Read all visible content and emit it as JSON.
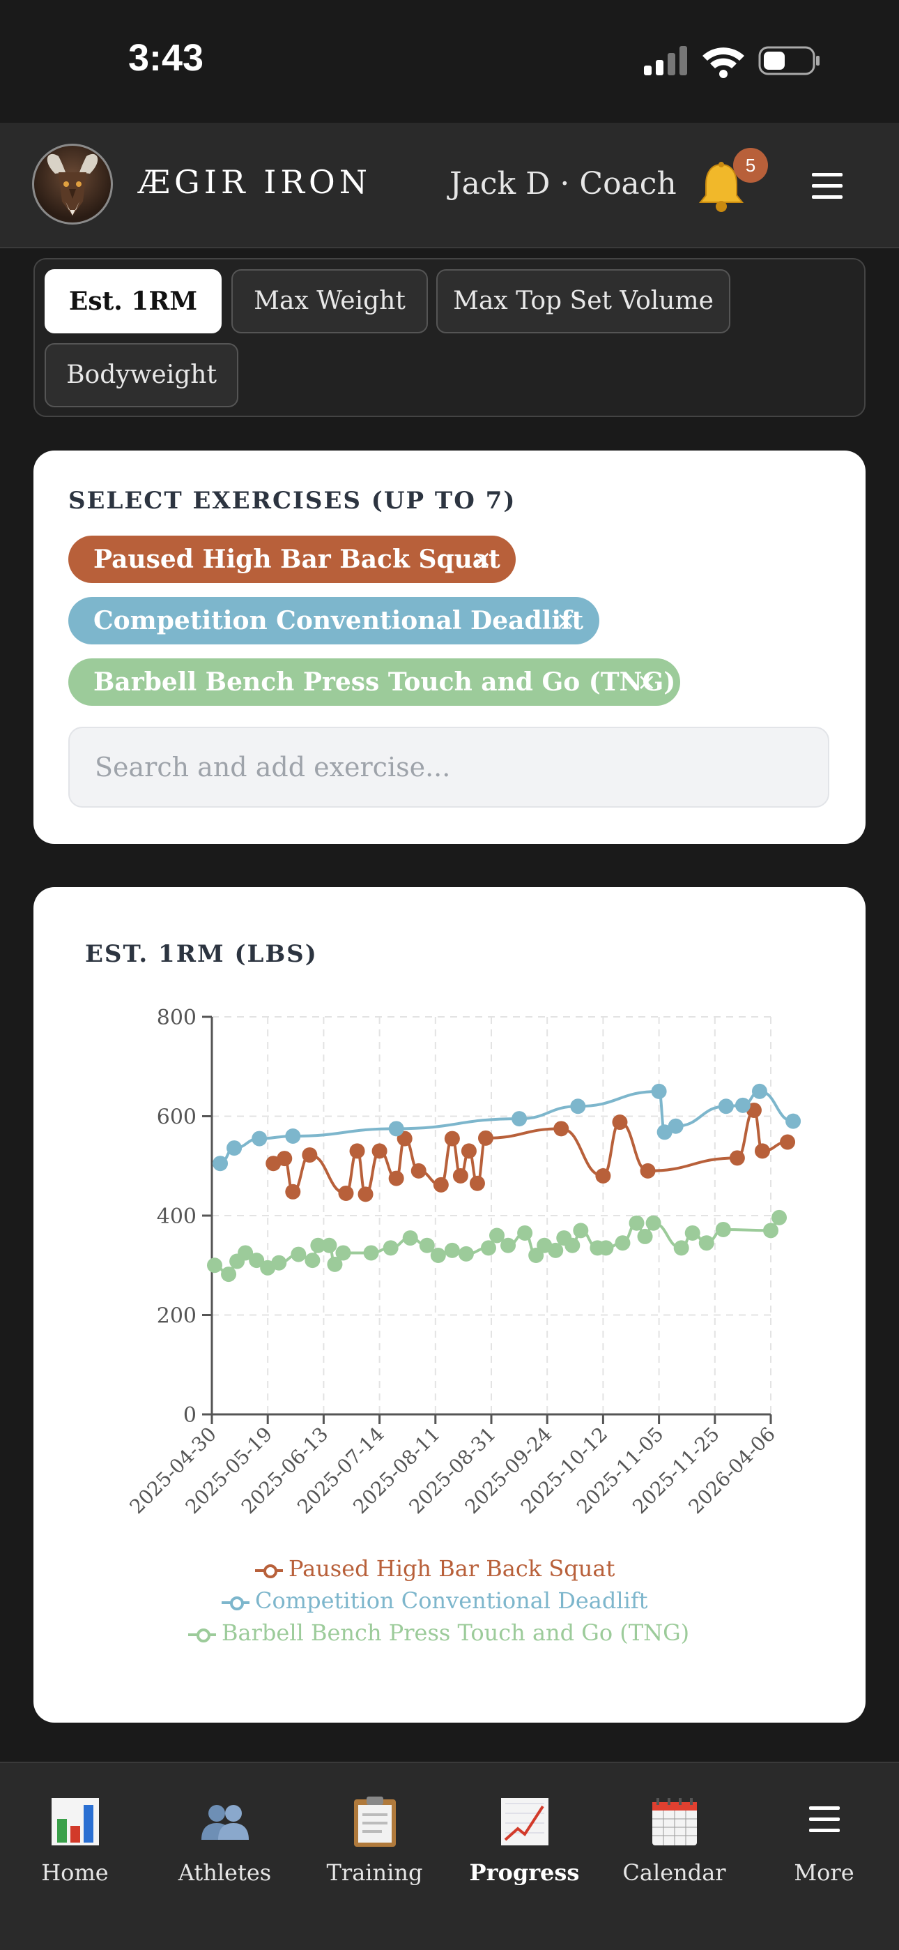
{
  "status_bar": {
    "time": "3:43"
  },
  "header": {
    "brand": "ÆGIR IRON",
    "user": "Jack D · Coach",
    "notification_count": "5"
  },
  "metric_tabs": [
    {
      "label": "Est. 1RM",
      "active": true
    },
    {
      "label": "Max Weight",
      "active": false
    },
    {
      "label": "Max Top Set Volume",
      "active": false
    },
    {
      "label": "Bodyweight",
      "active": false
    }
  ],
  "exercise_select": {
    "title": "SELECT EXERCISES (UP TO 7)",
    "chips": [
      {
        "label": "Paused High Bar Back Squat",
        "color": "#b8603a",
        "remove": "×"
      },
      {
        "label": "Competition Conventional Deadlift",
        "color": "#7db6cc",
        "remove": "×"
      },
      {
        "label": "Barbell Bench Press Touch and Go (TNG)",
        "color": "#9ccb9a",
        "remove": "×"
      }
    ],
    "search_placeholder": "Search and add exercise..."
  },
  "chart_data": {
    "type": "line",
    "title": "EST. 1RM (LBS)",
    "ylim": [
      0,
      800
    ],
    "y_ticks": [
      0,
      200,
      400,
      600,
      800
    ],
    "x_tick_labels": [
      "2025-04-30",
      "2025-05-19",
      "2025-06-13",
      "2025-07-14",
      "2025-08-11",
      "2025-08-31",
      "2025-09-24",
      "2025-10-12",
      "2025-11-05",
      "2025-11-25",
      "2026-04-06"
    ],
    "grid": true,
    "legend_position": "bottom",
    "series": [
      {
        "name": "Paused High Bar Back Squat",
        "color": "#b8603a",
        "points": [
          [
            1.1,
            505
          ],
          [
            1.3,
            515
          ],
          [
            1.45,
            448
          ],
          [
            1.75,
            522
          ],
          [
            2.4,
            445
          ],
          [
            2.6,
            530
          ],
          [
            2.75,
            443
          ],
          [
            3.0,
            530
          ],
          [
            3.3,
            475
          ],
          [
            3.45,
            555
          ],
          [
            3.7,
            490
          ],
          [
            4.1,
            462
          ],
          [
            4.3,
            555
          ],
          [
            4.45,
            480
          ],
          [
            4.6,
            530
          ],
          [
            4.75,
            465
          ],
          [
            4.9,
            556
          ],
          [
            6.25,
            575
          ],
          [
            7.0,
            480
          ],
          [
            7.3,
            588
          ],
          [
            7.8,
            490
          ],
          [
            9.4,
            516
          ],
          [
            9.7,
            612
          ],
          [
            9.85,
            530
          ],
          [
            10.3,
            548
          ]
        ]
      },
      {
        "name": "Competition Conventional Deadlift",
        "color": "#7db6cc",
        "points": [
          [
            0.15,
            505
          ],
          [
            0.4,
            536
          ],
          [
            0.85,
            555
          ],
          [
            1.45,
            560
          ],
          [
            3.3,
            575
          ],
          [
            5.5,
            595
          ],
          [
            6.55,
            620
          ],
          [
            8.0,
            650
          ],
          [
            8.1,
            568
          ],
          [
            8.3,
            580
          ],
          [
            9.2,
            620
          ],
          [
            9.5,
            622
          ],
          [
            9.8,
            650
          ],
          [
            10.4,
            590
          ]
        ]
      },
      {
        "name": "Barbell Bench Press Touch and Go (TNG)",
        "color": "#9ccb9a",
        "points": [
          [
            0.05,
            300
          ],
          [
            0.3,
            282
          ],
          [
            0.45,
            308
          ],
          [
            0.6,
            325
          ],
          [
            0.8,
            310
          ],
          [
            1.0,
            295
          ],
          [
            1.2,
            305
          ],
          [
            1.55,
            322
          ],
          [
            1.8,
            310
          ],
          [
            1.9,
            340
          ],
          [
            2.1,
            340
          ],
          [
            2.2,
            302
          ],
          [
            2.35,
            325
          ],
          [
            2.85,
            325
          ],
          [
            3.2,
            335
          ],
          [
            3.55,
            355
          ],
          [
            3.85,
            340
          ],
          [
            4.05,
            320
          ],
          [
            4.3,
            330
          ],
          [
            4.55,
            323
          ],
          [
            4.95,
            335
          ],
          [
            5.1,
            360
          ],
          [
            5.3,
            340
          ],
          [
            5.6,
            365
          ],
          [
            5.8,
            320
          ],
          [
            5.95,
            340
          ],
          [
            6.15,
            330
          ],
          [
            6.3,
            355
          ],
          [
            6.45,
            340
          ],
          [
            6.6,
            370
          ],
          [
            6.9,
            335
          ],
          [
            7.05,
            335
          ],
          [
            7.35,
            345
          ],
          [
            7.6,
            385
          ],
          [
            7.75,
            358
          ],
          [
            7.9,
            385
          ],
          [
            8.4,
            335
          ],
          [
            8.6,
            365
          ],
          [
            8.85,
            345
          ],
          [
            9.15,
            372
          ],
          [
            10.0,
            370
          ],
          [
            10.15,
            396
          ]
        ]
      }
    ]
  },
  "bottom_nav": [
    {
      "label": "Home",
      "icon": "bar-chart-icon",
      "active": false
    },
    {
      "label": "Athletes",
      "icon": "people-icon",
      "active": false
    },
    {
      "label": "Training",
      "icon": "clipboard-icon",
      "active": false
    },
    {
      "label": "Progress",
      "icon": "trend-chart-icon",
      "active": true
    },
    {
      "label": "Calendar",
      "icon": "calendar-icon",
      "active": false
    },
    {
      "label": "More",
      "icon": "menu-icon",
      "active": false
    }
  ]
}
